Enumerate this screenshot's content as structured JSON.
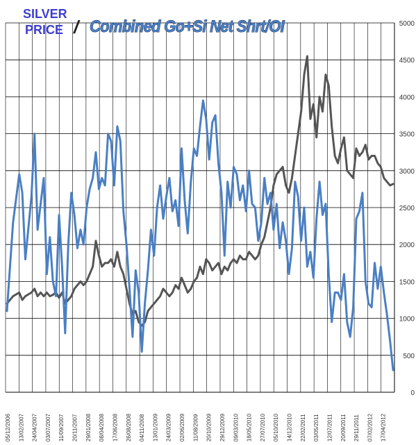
{
  "chart_data": {
    "type": "line",
    "title_left_line1": "SILVER",
    "title_left_line2": "PRICE",
    "title_separator": "/",
    "title_right": "Combined Go+Si Net Shrt/OI",
    "colors": {
      "silver": "#4a7fc4",
      "netshort": "#555555",
      "grid": "#000000"
    },
    "grid": true,
    "y_right": {
      "min": 0,
      "max": 5000,
      "ticks": [
        "0",
        "500",
        "1000",
        "1500",
        "2000",
        "2500",
        "3000",
        "3500",
        "4000",
        "4500",
        "5000"
      ]
    },
    "x_ticks": [
      "05/12/2006",
      "13/02/2007",
      "24/04/2007",
      "03/07/2007",
      "11/09/2007",
      "20/11/2007",
      "29/01/2008",
      "08/04/2008",
      "17/06/2008",
      "26/08/2008",
      "04/11/2008",
      "13/01/2009",
      "24/03/2009",
      "02/06/2009",
      "11/08/2009",
      "20/10/2009",
      "29/12/2009",
      "09/03/2010",
      "18/05/2010",
      "27/07/2010",
      "05/10/2010",
      "14/12/2010",
      "22/02/2011",
      "03/05/2011",
      "12/07/2011",
      "20/09/2011",
      "29/11/2011",
      "07/02/2012",
      "17/04/2012"
    ],
    "series": [
      {
        "key": "silver",
        "points": [
          [
            0,
            1100
          ],
          [
            2,
            2300
          ],
          [
            4,
            2950
          ],
          [
            5,
            2700
          ],
          [
            6,
            1800
          ],
          [
            8,
            2650
          ],
          [
            9,
            3500
          ],
          [
            10,
            2200
          ],
          [
            11,
            2550
          ],
          [
            12,
            2900
          ],
          [
            13,
            1600
          ],
          [
            14,
            2100
          ],
          [
            15,
            1500
          ],
          [
            16,
            1300
          ],
          [
            17,
            2400
          ],
          [
            18,
            1700
          ],
          [
            19,
            800
          ],
          [
            20,
            2000
          ],
          [
            21,
            2700
          ],
          [
            22,
            2400
          ],
          [
            23,
            1950
          ],
          [
            24,
            2200
          ],
          [
            25,
            2000
          ],
          [
            26,
            2500
          ],
          [
            27,
            2750
          ],
          [
            28,
            2900
          ],
          [
            29,
            3250
          ],
          [
            30,
            2750
          ],
          [
            31,
            2900
          ],
          [
            32,
            2800
          ],
          [
            33,
            3500
          ],
          [
            34,
            3400
          ],
          [
            35,
            2800
          ],
          [
            36,
            3600
          ],
          [
            37,
            3400
          ],
          [
            38,
            2450
          ],
          [
            39,
            2000
          ],
          [
            40,
            1400
          ],
          [
            41,
            750
          ],
          [
            42,
            1650
          ],
          [
            43,
            1350
          ],
          [
            44,
            550
          ],
          [
            45,
            1200
          ],
          [
            46,
            1650
          ],
          [
            47,
            2200
          ],
          [
            48,
            1850
          ],
          [
            49,
            2500
          ],
          [
            50,
            2800
          ],
          [
            51,
            2350
          ],
          [
            52,
            2650
          ],
          [
            53,
            2900
          ],
          [
            54,
            2450
          ],
          [
            55,
            2600
          ],
          [
            56,
            2250
          ],
          [
            57,
            3300
          ],
          [
            58,
            2600
          ],
          [
            59,
            2150
          ],
          [
            60,
            2850
          ],
          [
            61,
            3300
          ],
          [
            62,
            3200
          ],
          [
            63,
            3600
          ],
          [
            64,
            3950
          ],
          [
            65,
            3700
          ],
          [
            66,
            3150
          ],
          [
            67,
            3650
          ],
          [
            68,
            3750
          ],
          [
            69,
            3100
          ],
          [
            70,
            2700
          ],
          [
            71,
            1850
          ],
          [
            72,
            2850
          ],
          [
            73,
            2500
          ],
          [
            74,
            3050
          ],
          [
            75,
            2950
          ],
          [
            76,
            2600
          ],
          [
            77,
            2800
          ],
          [
            78,
            2450
          ],
          [
            79,
            3000
          ],
          [
            80,
            2550
          ],
          [
            81,
            2500
          ],
          [
            82,
            2050
          ],
          [
            83,
            2300
          ],
          [
            84,
            2900
          ],
          [
            85,
            2550
          ],
          [
            86,
            2700
          ],
          [
            87,
            2200
          ],
          [
            88,
            2550
          ],
          [
            89,
            1950
          ],
          [
            90,
            2300
          ],
          [
            91,
            2050
          ],
          [
            92,
            1600
          ],
          [
            93,
            1950
          ],
          [
            94,
            2850
          ],
          [
            95,
            2650
          ],
          [
            96,
            2050
          ],
          [
            97,
            2500
          ],
          [
            98,
            1700
          ],
          [
            99,
            1900
          ],
          [
            100,
            1550
          ],
          [
            101,
            2350
          ],
          [
            102,
            2850
          ],
          [
            103,
            2400
          ],
          [
            104,
            2550
          ],
          [
            105,
            1600
          ],
          [
            106,
            950
          ],
          [
            107,
            1350
          ],
          [
            108,
            1350
          ],
          [
            109,
            1250
          ],
          [
            110,
            1600
          ],
          [
            111,
            950
          ],
          [
            112,
            750
          ],
          [
            113,
            1150
          ],
          [
            114,
            2350
          ],
          [
            115,
            2450
          ],
          [
            116,
            2700
          ],
          [
            117,
            1500
          ],
          [
            118,
            1200
          ],
          [
            119,
            1150
          ],
          [
            120,
            1750
          ],
          [
            121,
            1400
          ],
          [
            122,
            1700
          ],
          [
            123,
            1350
          ],
          [
            124,
            1050
          ],
          [
            125,
            700
          ],
          [
            126,
            300
          ]
        ]
      },
      {
        "key": "netshort",
        "points": [
          [
            0,
            1200
          ],
          [
            2,
            1300
          ],
          [
            4,
            1350
          ],
          [
            5,
            1250
          ],
          [
            6,
            1300
          ],
          [
            8,
            1350
          ],
          [
            9,
            1400
          ],
          [
            10,
            1300
          ],
          [
            11,
            1350
          ],
          [
            12,
            1300
          ],
          [
            13,
            1350
          ],
          [
            14,
            1300
          ],
          [
            15,
            1320
          ],
          [
            16,
            1350
          ],
          [
            17,
            1280
          ],
          [
            18,
            1350
          ],
          [
            19,
            1200
          ],
          [
            20,
            1250
          ],
          [
            21,
            1300
          ],
          [
            22,
            1400
          ],
          [
            23,
            1450
          ],
          [
            24,
            1500
          ],
          [
            25,
            1450
          ],
          [
            26,
            1500
          ],
          [
            27,
            1600
          ],
          [
            28,
            1700
          ],
          [
            29,
            2050
          ],
          [
            30,
            1850
          ],
          [
            31,
            1700
          ],
          [
            32,
            1750
          ],
          [
            33,
            1750
          ],
          [
            34,
            1800
          ],
          [
            35,
            1700
          ],
          [
            36,
            1900
          ],
          [
            37,
            1700
          ],
          [
            38,
            1600
          ],
          [
            39,
            1400
          ],
          [
            40,
            1200
          ],
          [
            41,
            1050
          ],
          [
            42,
            1100
          ],
          [
            43,
            950
          ],
          [
            44,
            900
          ],
          [
            45,
            950
          ],
          [
            46,
            1100
          ],
          [
            47,
            1150
          ],
          [
            48,
            1200
          ],
          [
            49,
            1250
          ],
          [
            50,
            1300
          ],
          [
            51,
            1400
          ],
          [
            52,
            1350
          ],
          [
            53,
            1300
          ],
          [
            54,
            1350
          ],
          [
            55,
            1450
          ],
          [
            56,
            1400
          ],
          [
            57,
            1550
          ],
          [
            58,
            1450
          ],
          [
            59,
            1350
          ],
          [
            60,
            1400
          ],
          [
            61,
            1500
          ],
          [
            62,
            1550
          ],
          [
            63,
            1700
          ],
          [
            64,
            1600
          ],
          [
            65,
            1800
          ],
          [
            66,
            1750
          ],
          [
            67,
            1650
          ],
          [
            68,
            1700
          ],
          [
            69,
            1750
          ],
          [
            70,
            1600
          ],
          [
            71,
            1700
          ],
          [
            72,
            1650
          ],
          [
            73,
            1750
          ],
          [
            74,
            1800
          ],
          [
            75,
            1750
          ],
          [
            76,
            1850
          ],
          [
            77,
            1800
          ],
          [
            78,
            1800
          ],
          [
            79,
            1900
          ],
          [
            80,
            1850
          ],
          [
            81,
            1800
          ],
          [
            82,
            1850
          ],
          [
            83,
            2000
          ],
          [
            84,
            2100
          ],
          [
            85,
            2300
          ],
          [
            86,
            2500
          ],
          [
            87,
            2800
          ],
          [
            88,
            2950
          ],
          [
            89,
            3000
          ],
          [
            90,
            3050
          ],
          [
            91,
            2800
          ],
          [
            92,
            2700
          ],
          [
            93,
            2900
          ],
          [
            94,
            3200
          ],
          [
            95,
            3500
          ],
          [
            96,
            3800
          ],
          [
            97,
            4300
          ],
          [
            98,
            4550
          ],
          [
            99,
            3700
          ],
          [
            100,
            3900
          ],
          [
            101,
            3450
          ],
          [
            102,
            4000
          ],
          [
            103,
            3800
          ],
          [
            104,
            4300
          ],
          [
            105,
            4150
          ],
          [
            106,
            3600
          ],
          [
            107,
            3200
          ],
          [
            108,
            3100
          ],
          [
            109,
            3300
          ],
          [
            110,
            3450
          ],
          [
            111,
            3000
          ],
          [
            112,
            2950
          ],
          [
            113,
            2900
          ],
          [
            114,
            3300
          ],
          [
            115,
            3200
          ],
          [
            116,
            3250
          ],
          [
            117,
            3350
          ],
          [
            118,
            3150
          ],
          [
            119,
            3200
          ],
          [
            120,
            3200
          ],
          [
            121,
            3100
          ],
          [
            122,
            3050
          ],
          [
            123,
            2900
          ],
          [
            124,
            2850
          ],
          [
            125,
            2800
          ],
          [
            126,
            2820
          ]
        ]
      }
    ]
  }
}
